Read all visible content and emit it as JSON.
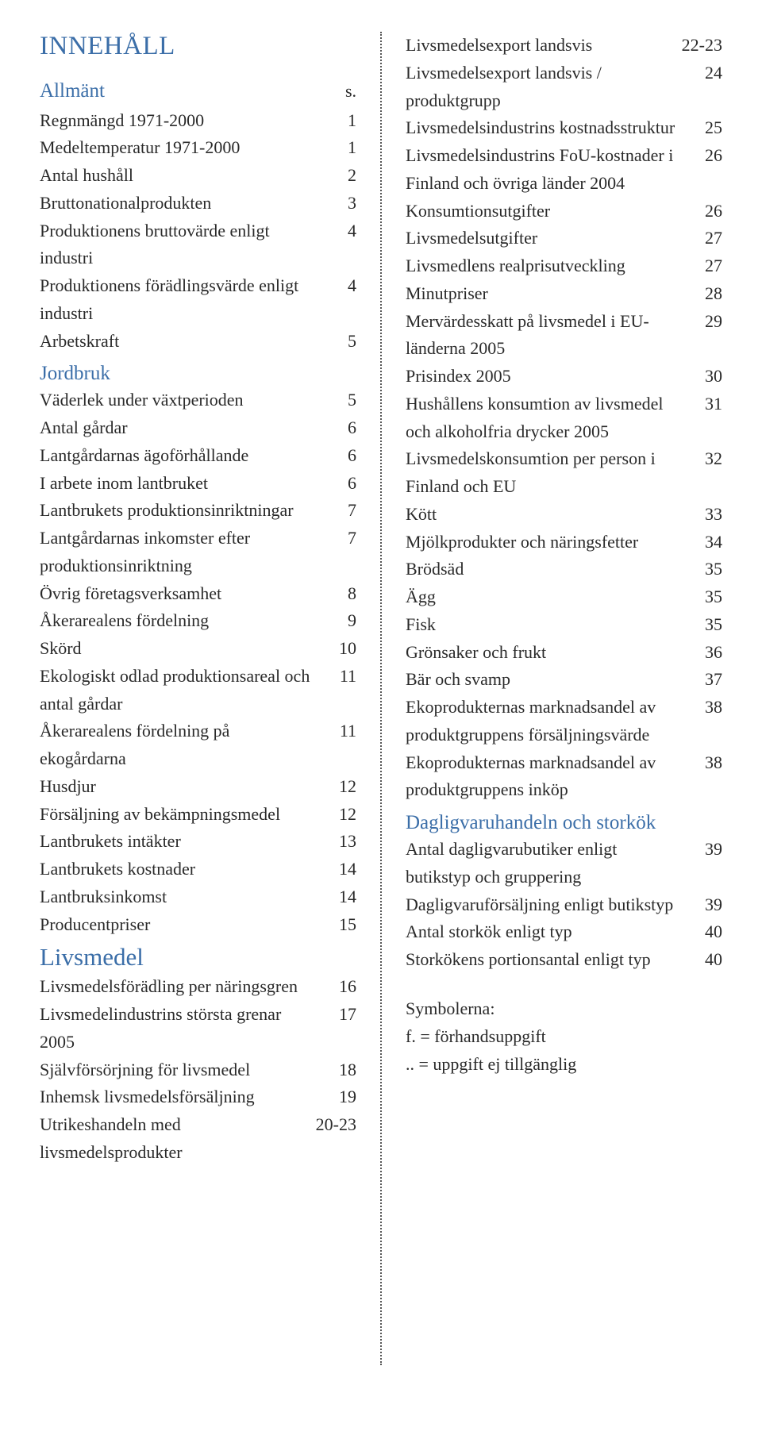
{
  "colors": {
    "heading": "#3b6ea8",
    "text": "#2a2a2a",
    "background": "#ffffff",
    "divider": "#555555"
  },
  "typography": {
    "title_fontsize": 33,
    "section_fontsize": 31,
    "subheading_fontsize": 25,
    "body_fontsize": 22,
    "line_height": 1.58,
    "font_family": "Georgia / serif"
  },
  "title": "INNEHÅLL",
  "left": {
    "allmant": {
      "heading": "Allmänt",
      "page_header": "s.",
      "items": [
        {
          "label": "Regnmängd 1971-2000",
          "page": "1"
        },
        {
          "label": "Medeltemperatur 1971-2000",
          "page": "1"
        },
        {
          "label": "Antal hushåll",
          "page": "2"
        },
        {
          "label": "Bruttonationalprodukten",
          "page": "3"
        },
        {
          "label": "Produktionens bruttovärde enligt industri",
          "page": "4"
        },
        {
          "label": "Produktionens förädlingsvärde enligt industri",
          "page": "4"
        },
        {
          "label": "Arbetskraft",
          "page": "5"
        }
      ]
    },
    "jordbruk": {
      "heading": "Jordbruk",
      "items": [
        {
          "label": "Väderlek under växtperioden",
          "page": "5"
        },
        {
          "label": "Antal gårdar",
          "page": "6"
        },
        {
          "label": "Lantgårdarnas ägoförhållande",
          "page": "6"
        },
        {
          "label": "I arbete inom lantbruket",
          "page": "6"
        },
        {
          "label": "Lantbrukets produktionsinriktningar",
          "page": "7"
        },
        {
          "label": "Lantgårdarnas inkomster efter produktionsinriktning",
          "page": "7"
        },
        {
          "label": "Övrig företagsverksamhet",
          "page": "8"
        },
        {
          "label": "Åkerarealens fördelning",
          "page": "9"
        },
        {
          "label": "Skörd",
          "page": "10"
        },
        {
          "label": "Ekologiskt odlad produktionsareal och antal gårdar",
          "page": "11"
        },
        {
          "label": "Åkerarealens fördelning på ekogårdarna",
          "page": "11"
        },
        {
          "label": "Husdjur",
          "page": "12"
        },
        {
          "label": "Försäljning av bekämpningsmedel",
          "page": "12"
        },
        {
          "label": "Lantbrukets intäkter",
          "page": "13"
        },
        {
          "label": "Lantbrukets kostnader",
          "page": "14"
        },
        {
          "label": "Lantbruksinkomst",
          "page": "14"
        },
        {
          "label": "Producentpriser",
          "page": "15"
        }
      ]
    },
    "livsmedel": {
      "heading": "Livsmedel",
      "items": [
        {
          "label": "Livsmedelsförädling per näringsgren",
          "page": "16"
        },
        {
          "label": "Livsmedelindustrins största grenar 2005",
          "page": "17"
        },
        {
          "label": "Självförsörjning för livsmedel",
          "page": "18"
        },
        {
          "label": "Inhemsk livsmedelsförsäljning",
          "page": "19"
        },
        {
          "label": "Utrikeshandeln med livsmedelsprodukter",
          "page": "20-23"
        }
      ]
    }
  },
  "right": {
    "cont_items": [
      {
        "label": "Livsmedelsexport landsvis",
        "page": "22-23"
      },
      {
        "label": "Livsmedelsexport landsvis / produktgrupp",
        "page": "24"
      },
      {
        "label": "Livsmedelsindustrins kostnadsstruktur",
        "page": "25"
      },
      {
        "label": "Livsmedelsindustrins FoU-kostnader i Finland och övriga länder 2004",
        "page": "26"
      },
      {
        "label": "Konsumtionsutgifter",
        "page": "26"
      },
      {
        "label": "Livsmedelsutgifter",
        "page": "27"
      },
      {
        "label": "Livsmedlens realprisutveckling",
        "page": "27"
      },
      {
        "label": "Minutpriser",
        "page": "28"
      },
      {
        "label": "Mervärdesskatt på livsmedel i EU-länderna 2005",
        "page": "29"
      },
      {
        "label": "Prisindex 2005",
        "page": "30"
      },
      {
        "label": "Hushållens konsumtion av livsmedel och alkoholfria drycker 2005",
        "page": "31"
      },
      {
        "label": "Livsmedelskonsumtion per person i Finland och EU",
        "page": "32"
      },
      {
        "label": "Kött",
        "page": "33"
      },
      {
        "label": "Mjölkprodukter och näringsfetter",
        "page": "34"
      },
      {
        "label": "Brödsäd",
        "page": "35"
      },
      {
        "label": "Ägg",
        "page": "35"
      },
      {
        "label": "Fisk",
        "page": "35"
      },
      {
        "label": "Grönsaker och frukt",
        "page": "36"
      },
      {
        "label": "Bär och svamp",
        "page": "37"
      },
      {
        "label": "Ekoprodukternas marknadsandel av produktgruppens försäljningsvärde",
        "page": "38"
      },
      {
        "label": "Ekoprodukternas marknadsandel av produktgruppens inköp",
        "page": "38"
      }
    ],
    "dagligvaru": {
      "heading": "Dagligvaruhandeln och storkök",
      "items": [
        {
          "label": "Antal dagligvarubutiker enligt butikstyp och gruppering",
          "page": "39"
        },
        {
          "label": "Dagligvaruförsäljning enligt butikstyp",
          "page": "39"
        },
        {
          "label": "Antal storkök enligt typ",
          "page": "40"
        },
        {
          "label": "Storkökens portionsantal enligt typ",
          "page": "40"
        }
      ]
    },
    "symbols": {
      "title": "Symbolerna:",
      "line1": "f. = förhandsuppgift",
      "line2": ".. = uppgift ej tillgänglig"
    }
  }
}
